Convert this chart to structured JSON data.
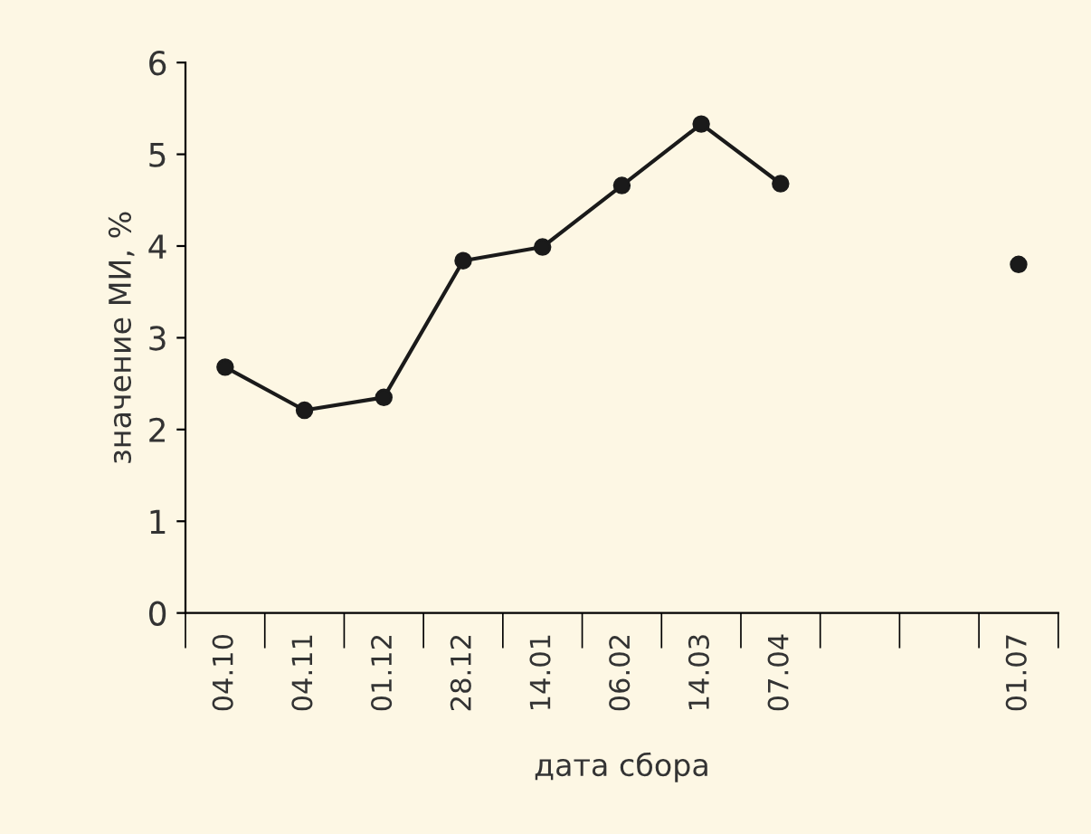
{
  "chart_data": {
    "type": "line",
    "xlabel": "дата сбора",
    "ylabel": "значение МИ, %",
    "categories": [
      "04.10",
      "04.11",
      "01.12",
      "28.12",
      "14.01",
      "06.02",
      "14.03",
      "07.04",
      null,
      null,
      "01.07"
    ],
    "series": [
      {
        "color": "#1a1a1a",
        "values": [
          2.68,
          2.21,
          2.35,
          3.84,
          3.99,
          4.66,
          5.33,
          4.68,
          null,
          null,
          3.8
        ]
      }
    ],
    "ylim": [
      0,
      6
    ],
    "yticks": [
      0,
      1,
      2,
      3,
      4,
      5,
      6
    ],
    "grid": false,
    "legend": false,
    "marker": "circle",
    "line_style": "solid"
  }
}
